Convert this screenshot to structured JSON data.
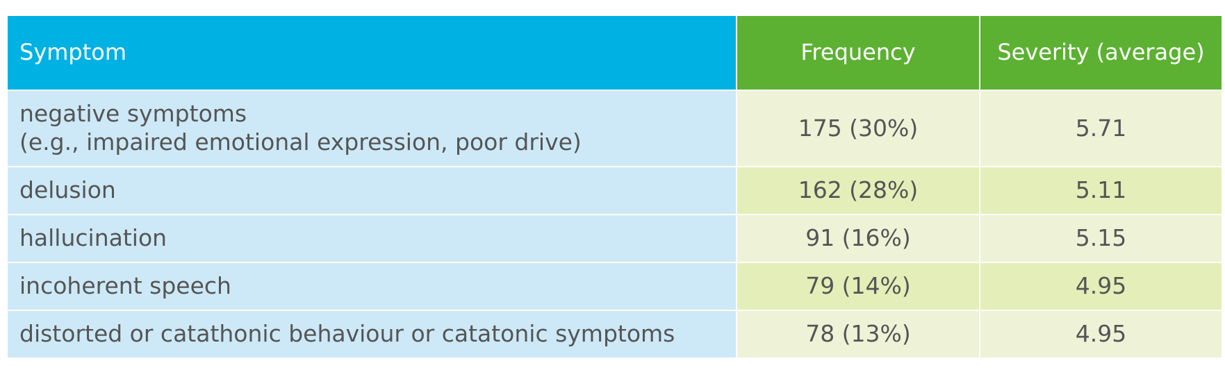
{
  "table": {
    "headers": {
      "symptom": "Symptom",
      "frequency": "Frequency",
      "severity": "Severity (average)"
    },
    "rows": [
      {
        "symptom_line1": "negative symptoms",
        "symptom_line2": "(e.g., impaired emotional expression, poor drive)",
        "frequency": "175 (30%)",
        "severity": "5.71"
      },
      {
        "symptom_line1": "delusion",
        "frequency": "162 (28%)",
        "severity": "5.11"
      },
      {
        "symptom_line1": "hallucination",
        "frequency": "91 (16%)",
        "severity": "5.15"
      },
      {
        "symptom_line1": "incoherent speech",
        "frequency": "79 (14%)",
        "severity": "4.95"
      },
      {
        "symptom_line1": "distorted or catathonic behaviour or catatonic symptoms",
        "frequency": "78 (13%)",
        "severity": "4.95"
      }
    ],
    "colors": {
      "symptom_header": "#00b2e3",
      "value_header": "#5cb132",
      "symptom_cell": "#cde9f7",
      "value_cell_light": "#eef3d7",
      "value_cell_dark": "#e4eeb8"
    }
  }
}
